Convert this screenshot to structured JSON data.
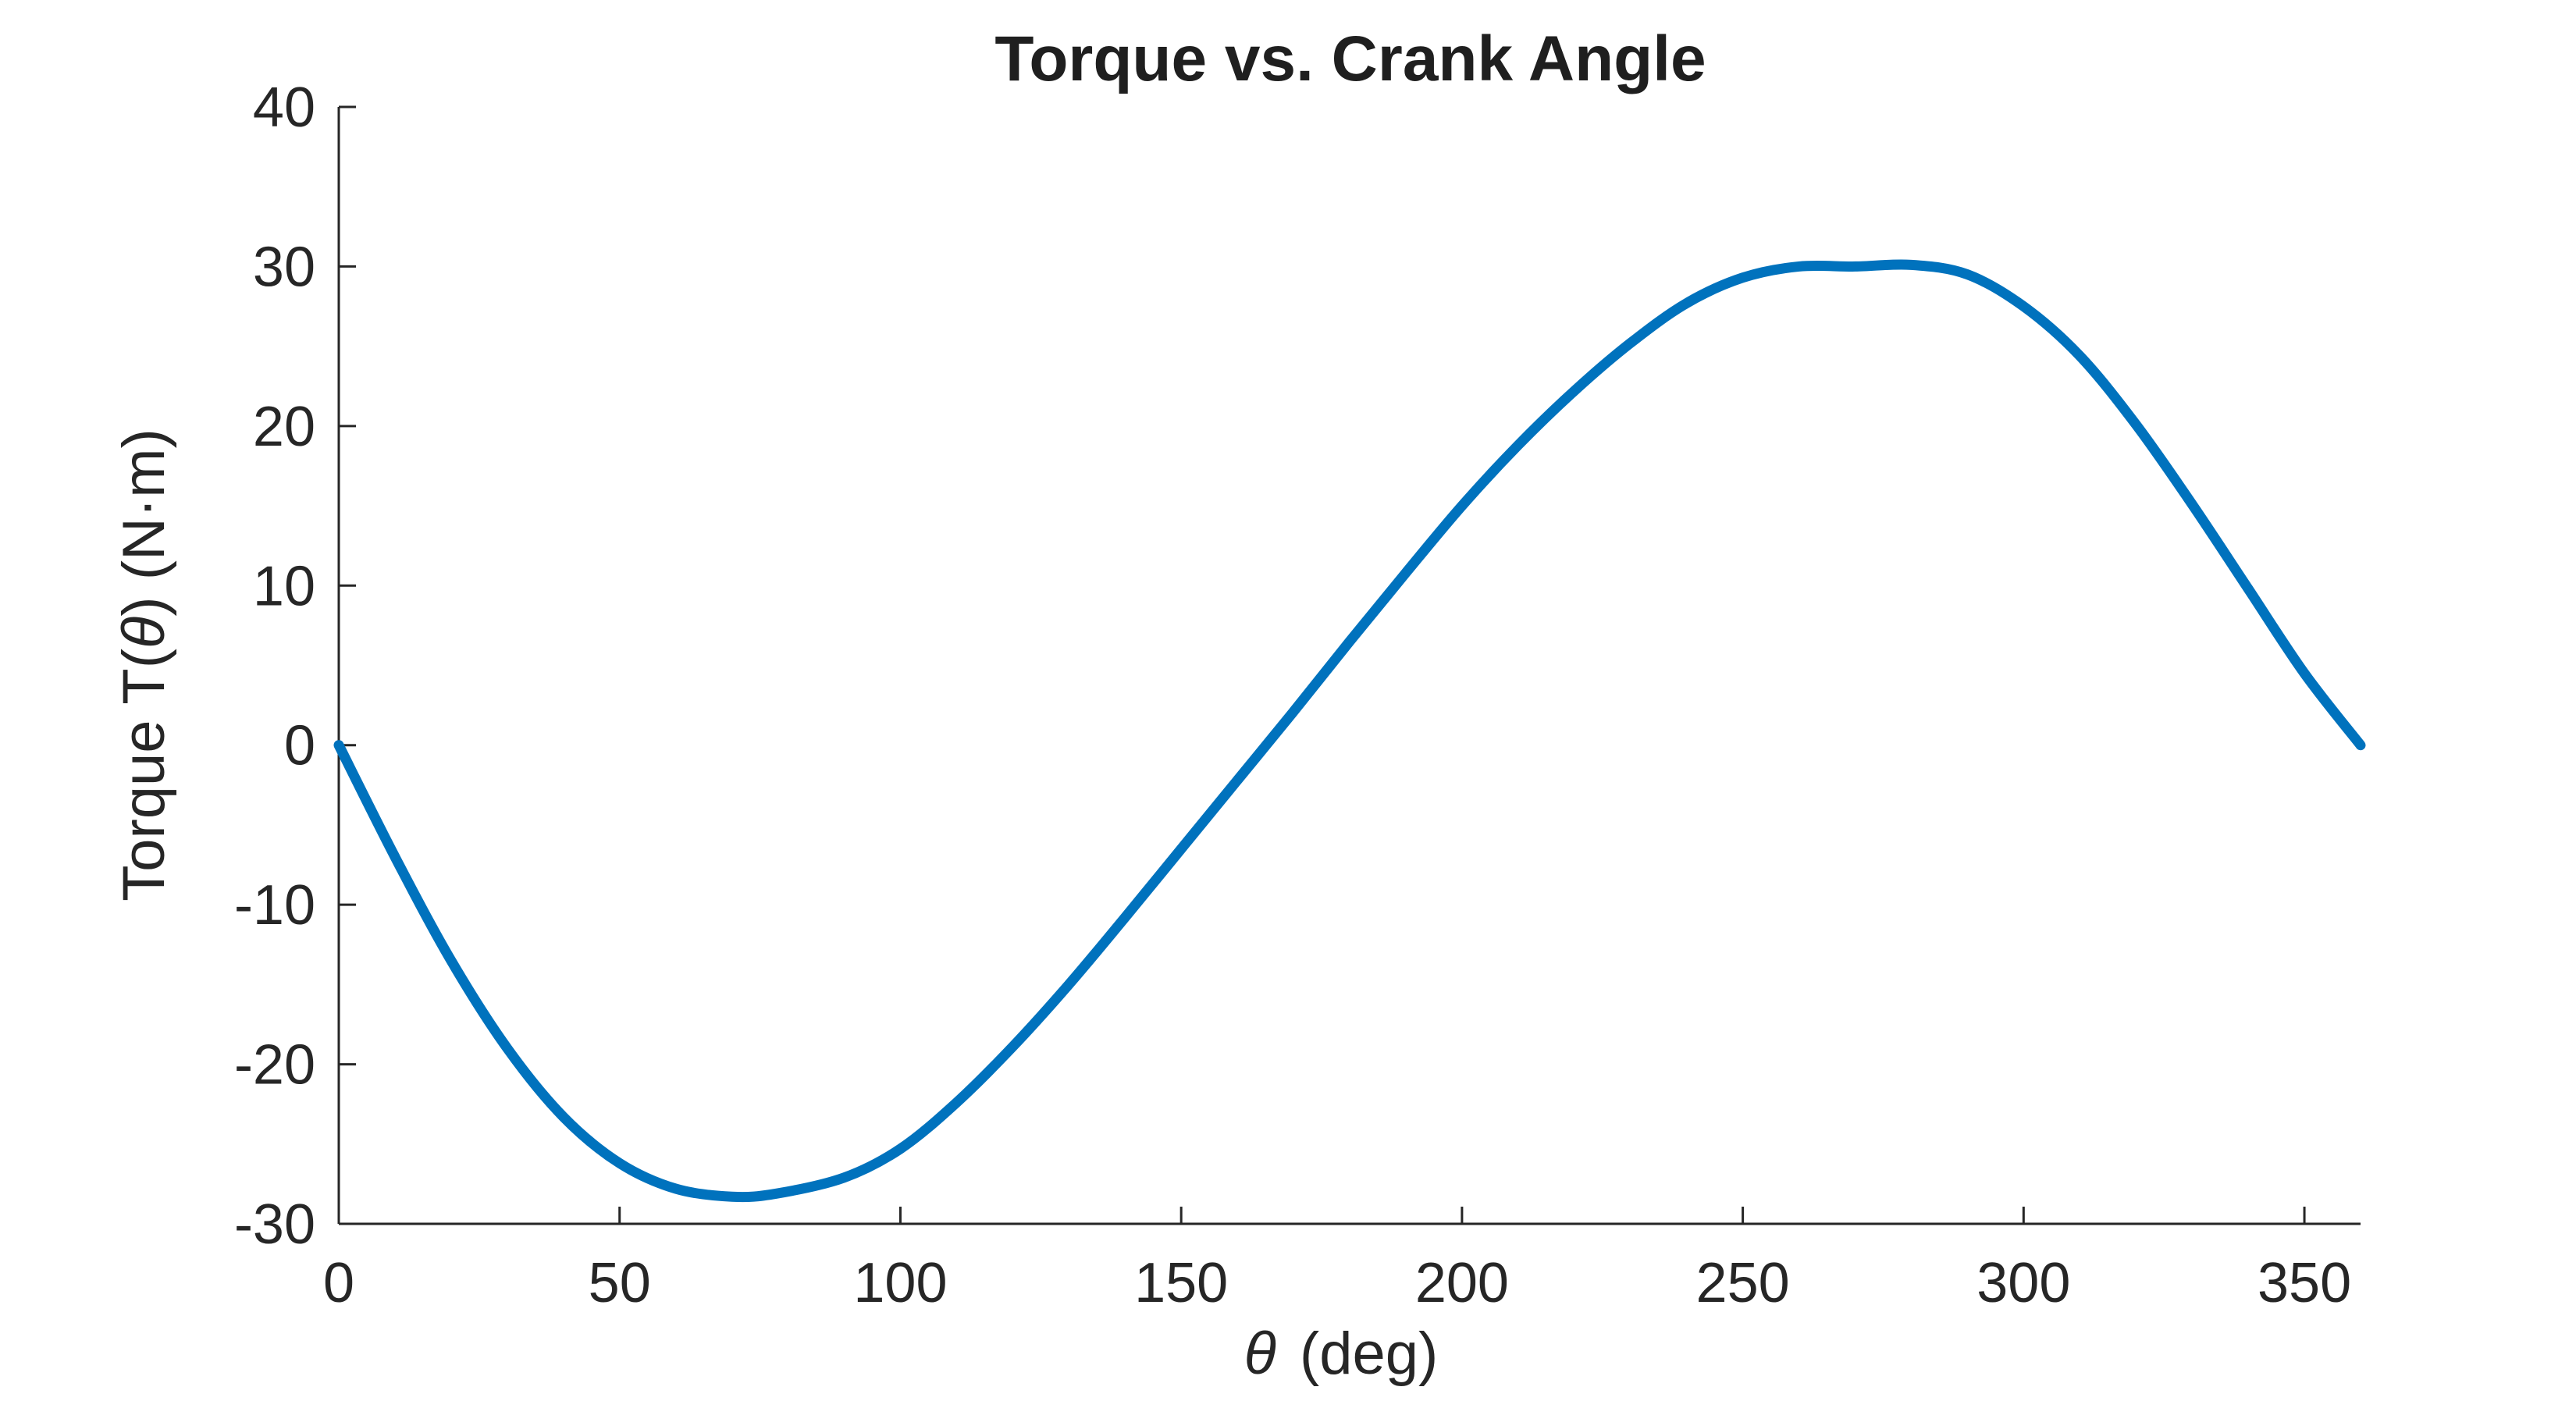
{
  "chart_data": {
    "type": "line",
    "title": "Torque vs. Crank Angle",
    "xlabel_symbol": "θ",
    "xlabel_unit": "(deg)",
    "ylabel_prefix": "Torque  T(",
    "ylabel_symbol": "θ",
    "ylabel_suffix": ")  (N·m)",
    "xlim": [
      0,
      360
    ],
    "ylim": [
      -30,
      40
    ],
    "xticks": [
      0,
      50,
      100,
      150,
      200,
      250,
      300,
      350
    ],
    "yticks": [
      -30,
      -20,
      -10,
      0,
      10,
      20,
      30,
      40
    ],
    "grid": false,
    "series": [
      {
        "color": "#0072BD",
        "x": [
          0,
          10,
          20,
          30,
          40,
          50,
          60,
          70,
          78,
          90,
          100,
          110,
          120,
          130,
          140,
          150,
          160,
          170,
          180,
          190,
          200,
          210,
          220,
          230,
          240,
          250,
          260,
          270,
          280,
          290,
          300,
          310,
          320,
          330,
          340,
          350,
          360
        ],
        "y": [
          0,
          -7.0,
          -13.5,
          -19.0,
          -23.3,
          -26.2,
          -27.8,
          -28.3,
          -28.1,
          -27.1,
          -25.3,
          -22.4,
          -18.9,
          -15.0,
          -10.8,
          -6.5,
          -2.2,
          2.1,
          6.5,
          10.8,
          15.0,
          18.8,
          22.2,
          25.2,
          27.7,
          29.3,
          30.0,
          30.0,
          30.1,
          29.5,
          27.5,
          24.4,
          20.1,
          15.1,
          9.8,
          4.5,
          0
        ]
      }
    ]
  }
}
